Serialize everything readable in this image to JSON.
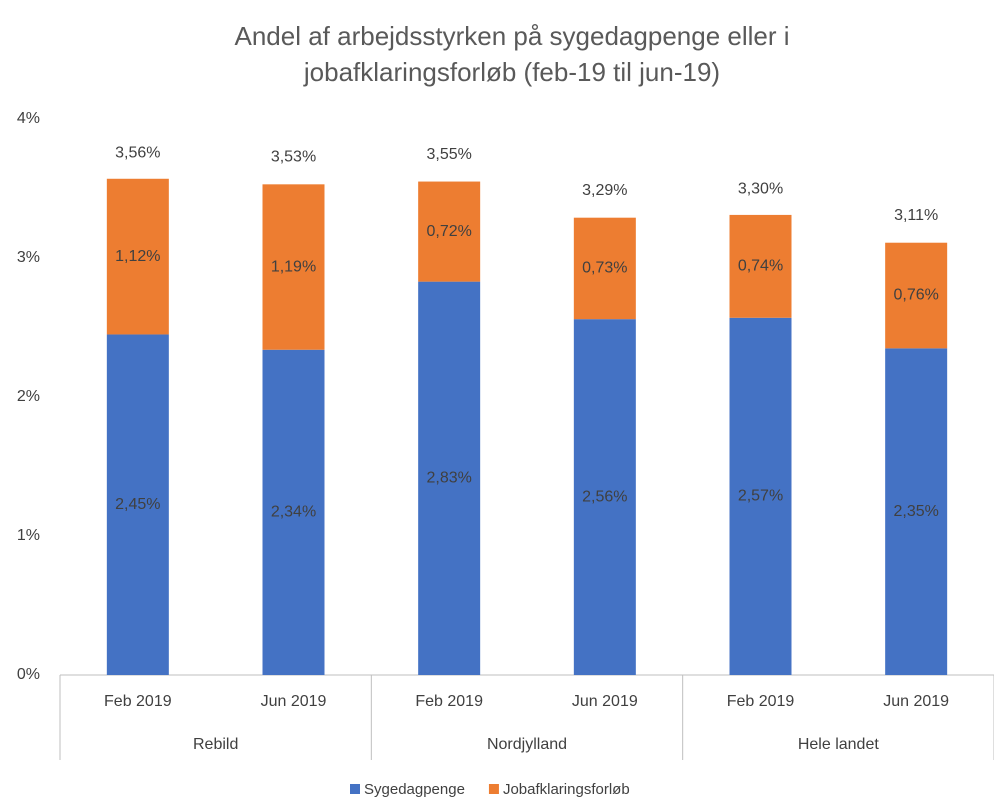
{
  "chart_data": {
    "type": "stacked_bar",
    "title": [
      "Andel af arbejdsstyrken på sygedagpenge eller i",
      "jobafklaringsforløb (feb-19 til jun-19)"
    ],
    "categories": [
      "Feb 2019",
      "Jun 2019",
      "Feb 2019",
      "Jun 2019",
      "Feb 2019",
      "Jun 2019"
    ],
    "groups": [
      "Rebild",
      "Nordjylland",
      "Hele landet"
    ],
    "series": [
      {
        "name": "Sygedagpenge",
        "color": "#4472c4",
        "values": [
          2.45,
          2.34,
          2.83,
          2.56,
          2.57,
          2.35
        ],
        "value_labels": [
          "2,45%",
          "2,34%",
          "2,83%",
          "2,56%",
          "2,57%",
          "2,35%"
        ]
      },
      {
        "name": "Jobafklaringsforløb",
        "color": "#ed7d31",
        "values": [
          1.12,
          1.19,
          0.72,
          0.73,
          0.74,
          0.76
        ],
        "value_labels": [
          "1,12%",
          "1,19%",
          "0,72%",
          "0,73%",
          "0,74%",
          "0,76%"
        ]
      }
    ],
    "totals": [
      3.56,
      3.53,
      3.55,
      3.29,
      3.3,
      3.11
    ],
    "total_labels": [
      "3,56%",
      "3,53%",
      "3,55%",
      "3,29%",
      "3,30%",
      "3,11%"
    ],
    "ylim": [
      0,
      4
    ],
    "yticks": [
      {
        "value": 0,
        "label": "0%"
      },
      {
        "value": 1,
        "label": "1%"
      },
      {
        "value": 2,
        "label": "2%"
      },
      {
        "value": 3,
        "label": "3%"
      },
      {
        "value": 4,
        "label": "4%"
      }
    ],
    "grid": false,
    "legend": "bottom"
  }
}
